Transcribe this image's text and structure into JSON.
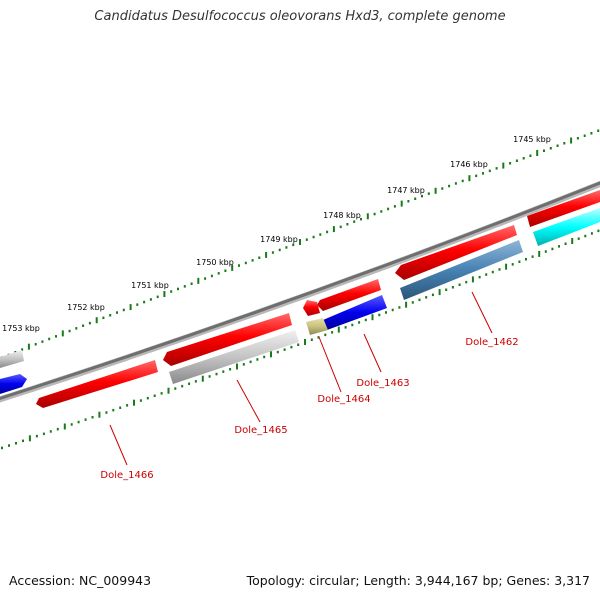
{
  "title": "Candidatus Desulfococcus oleovorans Hxd3, complete genome",
  "footer": {
    "accession": "Accession: NC_009943",
    "topology": "Topology: circular; Length: 3,944,167 bp; Genes: 3,317"
  },
  "colors": {
    "forward_gene": "#ff0000",
    "reverse_gene_gray": "#c0c0c0",
    "reverse_gene_blue": "#0000ee",
    "reverse_gene_steelblue": "#4682b4",
    "reverse_gene_cyan": "#00ffff",
    "reverse_gene_khaki": "#c8c080",
    "backbone": "#777777",
    "tick": "#1a7a1a",
    "label": "#cc0000"
  },
  "ruler_labels": [
    {
      "text": "1745 kbp"
    },
    {
      "text": "1746 kbp"
    },
    {
      "text": "1747 kbp"
    },
    {
      "text": "1748 kbp"
    },
    {
      "text": "1749 kbp"
    },
    {
      "text": "1750 kbp"
    },
    {
      "text": "1751 kbp"
    },
    {
      "text": "1752 kbp"
    },
    {
      "text": "1753 kbp"
    }
  ],
  "gene_labels": [
    {
      "text": "Dole_1462"
    },
    {
      "text": "Dole_1463"
    },
    {
      "text": "Dole_1464"
    },
    {
      "text": "Dole_1465"
    },
    {
      "text": "Dole_1466"
    }
  ]
}
